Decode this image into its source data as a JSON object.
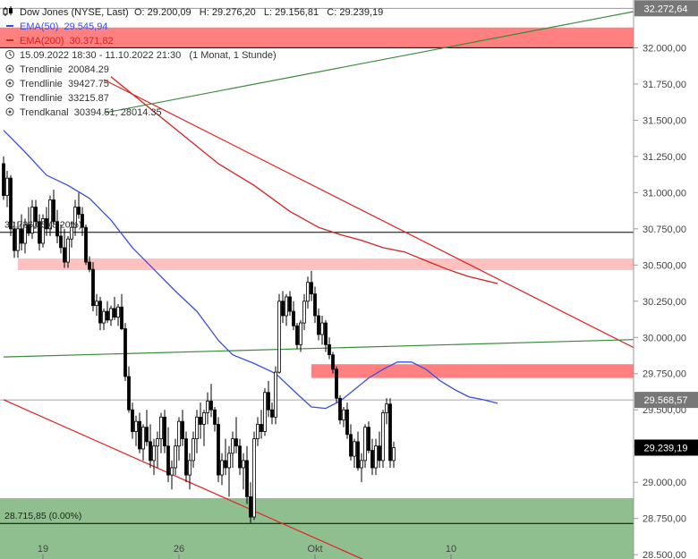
{
  "header": {
    "title": "Dow Jones (NYSE, Last)",
    "ohlc": "O: 29.200,09   H: 29.276,20   L: 29.156,81   C: 29.239,19",
    "ema50": "EMA(50)  29.545,94",
    "ema200": "EMA(200)  30.371,82",
    "range": "15.09.2022 18:30 - 11.10.2022 21:30   (1 Monat, 1 Stunde)",
    "trend1": "Trendlinie  20084.29",
    "trend2": "Trendlinie  39427.75",
    "trend3": "Trendlinie  33215.87",
    "channel": "Trendkanal  30394.51, 28014.35"
  },
  "colors": {
    "up": "#ffffff",
    "down": "#000000",
    "ema50": "#3a4fe0",
    "ema200": "#d32222",
    "resistance_strong": "#ff8080",
    "resistance_light": "#ffc0c0",
    "support": "#8fbf8f",
    "trend_green": "#3a8a3a",
    "trend_red": "#e02020",
    "current_tag": "#000000"
  },
  "chart_data": {
    "type": "candlestick",
    "y_ticks": [
      "32.000,00",
      "31.750,00",
      "31.500,00",
      "31.250,00",
      "31.000,00",
      "30.750,00",
      "30.500,00",
      "30.250,00",
      "30.000,00",
      "29.750,00",
      "29.500,00",
      "29.250,00",
      "29.000,00",
      "28.750,00",
      "28.500,00"
    ],
    "y_tick_values": [
      32000,
      31750,
      31500,
      31250,
      31000,
      30750,
      30500,
      30250,
      30000,
      29750,
      29500,
      29250,
      29000,
      28750,
      28500
    ],
    "x_labels": [
      {
        "label": "19",
        "bar": 11
      },
      {
        "label": "26",
        "bar": 49
      },
      {
        "label": "Okt",
        "bar": 87
      },
      {
        "label": "10",
        "bar": 125
      }
    ],
    "ylim": [
      28470,
      32330
    ],
    "price_labels": {
      "top": "32.272,64",
      "ref": "29.568,57",
      "last": "29.239,19"
    },
    "hlines": [
      {
        "value": 32272.64,
        "color": "#888888",
        "width": 0.8
      },
      {
        "value": 32000,
        "color": "#000000",
        "width": 1
      },
      {
        "value": 30726,
        "color": "#000000",
        "width": 1
      },
      {
        "value": 29568.57,
        "color": "#888888",
        "width": 0.8
      },
      {
        "value": 28715.85,
        "color": "#000000",
        "width": 1
      }
    ],
    "zones": [
      {
        "from": 32000,
        "to": 32140,
        "color": "#ff8080",
        "start_bar": 0
      },
      {
        "from": 30465,
        "to": 30545,
        "color": "#ffc0c0",
        "start_bar": 4
      },
      {
        "from": 29720,
        "to": 29815,
        "color": "#ff8080",
        "start_bar": 86
      },
      {
        "from": 28470,
        "to": 28890,
        "color": "#8fbf8f",
        "start_bar": 0
      }
    ],
    "zone_labels": [
      {
        "text": "30.726,05 (8.20%)",
        "value": 30726
      },
      {
        "text": "28.715,85 (0.00%)",
        "value": 28715.85
      }
    ],
    "trendlines": [
      {
        "name": "Trendlinie 20084.29",
        "color": "#e02020",
        "p1": [
          28,
          31780
        ],
        "p2": [
          176,
          29930
        ]
      },
      {
        "name": "Trendlinie 39427.75",
        "color": "#3a8a3a",
        "p1": [
          0,
          29865
        ],
        "p2": [
          176,
          29985
        ]
      },
      {
        "name": "Trendlinie 33215.87",
        "color": "#3a8a3a",
        "p1": [
          28,
          31550
        ],
        "p2": [
          176,
          32250
        ]
      },
      {
        "name": "Trendkanal 30394.51, 28014.35",
        "color": "#e02020",
        "p1": [
          0,
          29570
        ],
        "p2": [
          102,
          28450
        ]
      }
    ],
    "ema50": [
      [
        0,
        31430
      ],
      [
        6,
        31280
      ],
      [
        12,
        31120
      ],
      [
        18,
        31050
      ],
      [
        24,
        30960
      ],
      [
        30,
        30810
      ],
      [
        36,
        30620
      ],
      [
        42,
        30470
      ],
      [
        48,
        30320
      ],
      [
        54,
        30180
      ],
      [
        60,
        29980
      ],
      [
        64,
        29880
      ],
      [
        70,
        29820
      ],
      [
        76,
        29750
      ],
      [
        82,
        29610
      ],
      [
        86,
        29520
      ],
      [
        90,
        29510
      ],
      [
        94,
        29560
      ],
      [
        98,
        29640
      ],
      [
        102,
        29720
      ],
      [
        106,
        29780
      ],
      [
        110,
        29830
      ],
      [
        114,
        29830
      ],
      [
        118,
        29780
      ],
      [
        122,
        29700
      ],
      [
        126,
        29640
      ],
      [
        130,
        29590
      ],
      [
        134,
        29570
      ],
      [
        138,
        29545
      ]
    ],
    "ema200": [
      [
        30,
        31800
      ],
      [
        40,
        31600
      ],
      [
        50,
        31400
      ],
      [
        60,
        31200
      ],
      [
        70,
        31050
      ],
      [
        80,
        30870
      ],
      [
        88,
        30760
      ],
      [
        94,
        30710
      ],
      [
        100,
        30670
      ],
      [
        106,
        30620
      ],
      [
        112,
        30590
      ],
      [
        118,
        30530
      ],
      [
        124,
        30470
      ],
      [
        130,
        30420
      ],
      [
        138,
        30372
      ]
    ],
    "candles": [
      [
        31200,
        31250,
        30950,
        30980
      ],
      [
        30980,
        31150,
        30900,
        31100
      ],
      [
        31100,
        31120,
        30700,
        30750
      ],
      [
        30750,
        30800,
        30550,
        30600
      ],
      [
        30600,
        30800,
        30550,
        30750
      ],
      [
        30750,
        30850,
        30600,
        30650
      ],
      [
        30650,
        30820,
        30580,
        30780
      ],
      [
        30780,
        30900,
        30700,
        30720
      ],
      [
        30720,
        30950,
        30680,
        30900
      ],
      [
        30900,
        30950,
        30750,
        30800
      ],
      [
        30800,
        30850,
        30600,
        30650
      ],
      [
        30650,
        30850,
        30620,
        30820
      ],
      [
        30820,
        30900,
        30700,
        30750
      ],
      [
        30750,
        30980,
        30700,
        30950
      ],
      [
        30950,
        31020,
        30780,
        30800
      ],
      [
        30800,
        30880,
        30650,
        30700
      ],
      [
        30700,
        30780,
        30580,
        30620
      ],
      [
        30620,
        30750,
        30480,
        30520
      ],
      [
        30520,
        30700,
        30480,
        30680
      ],
      [
        30680,
        30800,
        30620,
        30760
      ],
      [
        30760,
        30950,
        30700,
        30900
      ],
      [
        30900,
        31000,
        30820,
        30850
      ],
      [
        30850,
        30900,
        30700,
        30760
      ],
      [
        30760,
        30780,
        30500,
        30520
      ],
      [
        30520,
        30560,
        30450,
        30470
      ],
      [
        30470,
        30520,
        30180,
        30220
      ],
      [
        30220,
        30300,
        30150,
        30250
      ],
      [
        30250,
        30280,
        30050,
        30100
      ],
      [
        30100,
        30200,
        30050,
        30180
      ],
      [
        30180,
        30250,
        30100,
        30120
      ],
      [
        30120,
        30220,
        30080,
        30200
      ],
      [
        30200,
        30280,
        30120,
        30140
      ],
      [
        30140,
        30230,
        30080,
        30210
      ],
      [
        30210,
        30300,
        30050,
        30060
      ],
      [
        30060,
        30100,
        29700,
        29730
      ],
      [
        29730,
        29800,
        29480,
        29500
      ],
      [
        29500,
        29550,
        29300,
        29350
      ],
      [
        29350,
        29460,
        29250,
        29420
      ],
      [
        29420,
        29480,
        29200,
        29230
      ],
      [
        29230,
        29400,
        29150,
        29380
      ],
      [
        29380,
        29500,
        29250,
        29280
      ],
      [
        29280,
        29400,
        29100,
        29150
      ],
      [
        29150,
        29300,
        29050,
        29250
      ],
      [
        29250,
        29350,
        29100,
        29300
      ],
      [
        29300,
        29480,
        29200,
        29450
      ],
      [
        29450,
        29500,
        29200,
        29250
      ],
      [
        29250,
        29380,
        29000,
        29050
      ],
      [
        29050,
        29150,
        28950,
        29100
      ],
      [
        29100,
        29300,
        29050,
        29250
      ],
      [
        29250,
        29450,
        29150,
        29420
      ],
      [
        29420,
        29500,
        29250,
        29300
      ],
      [
        29300,
        29350,
        29000,
        29050
      ],
      [
        29050,
        29200,
        28950,
        29150
      ],
      [
        29150,
        29350,
        29100,
        29300
      ],
      [
        29300,
        29500,
        29200,
        29450
      ],
      [
        29450,
        29550,
        29300,
        29400
      ],
      [
        29400,
        29500,
        29250,
        29480
      ],
      [
        29480,
        29620,
        29400,
        29560
      ],
      [
        29560,
        29680,
        29450,
        29500
      ],
      [
        29500,
        29520,
        29350,
        29400
      ],
      [
        29400,
        29450,
        29000,
        29050
      ],
      [
        29050,
        29200,
        28980,
        29150
      ],
      [
        29150,
        29300,
        29050,
        29100
      ],
      [
        29100,
        29250,
        28900,
        29200
      ],
      [
        29200,
        29350,
        29100,
        29300
      ],
      [
        29300,
        29450,
        29200,
        29250
      ],
      [
        29250,
        29300,
        29050,
        29100
      ],
      [
        29100,
        29200,
        28950,
        29150
      ],
      [
        29150,
        29250,
        28850,
        28900
      ],
      [
        28900,
        29000,
        28720,
        28760
      ],
      [
        28760,
        29350,
        28740,
        29300
      ],
      [
        29300,
        29450,
        29250,
        29400
      ],
      [
        29400,
        29500,
        29300,
        29350
      ],
      [
        29350,
        29650,
        29320,
        29620
      ],
      [
        29620,
        29700,
        29450,
        29500
      ],
      [
        29500,
        29550,
        29400,
        29450
      ],
      [
        29450,
        29800,
        29400,
        29760
      ],
      [
        29760,
        30300,
        29750,
        30250
      ],
      [
        30250,
        30320,
        30100,
        30150
      ],
      [
        30150,
        30300,
        30080,
        30280
      ],
      [
        30280,
        30320,
        30150,
        30180
      ],
      [
        30180,
        30250,
        30050,
        30080
      ],
      [
        30080,
        30100,
        29920,
        29950
      ],
      [
        29950,
        30120,
        29900,
        30100
      ],
      [
        30100,
        30300,
        30050,
        30250
      ],
      [
        30250,
        30420,
        30200,
        30380
      ],
      [
        30380,
        30460,
        30250,
        30300
      ],
      [
        30300,
        30350,
        30100,
        30150
      ],
      [
        30150,
        30200,
        29980,
        30020
      ],
      [
        30020,
        30150,
        29950,
        30100
      ],
      [
        30100,
        30120,
        29900,
        29950
      ],
      [
        29950,
        30000,
        29850,
        29880
      ],
      [
        29880,
        29900,
        29750,
        29780
      ],
      [
        29780,
        29800,
        29550,
        29580
      ],
      [
        29580,
        29600,
        29400,
        29430
      ],
      [
        29430,
        29520,
        29380,
        29500
      ],
      [
        29500,
        29550,
        29300,
        29330
      ],
      [
        29330,
        29400,
        29150,
        29180
      ],
      [
        29180,
        29300,
        29100,
        29280
      ],
      [
        29280,
        29350,
        29080,
        29100
      ],
      [
        29100,
        29200,
        29000,
        29150
      ],
      [
        29150,
        29400,
        29100,
        29380
      ],
      [
        29380,
        29420,
        29200,
        29220
      ],
      [
        29220,
        29300,
        29050,
        29100
      ],
      [
        29100,
        29300,
        29050,
        29250
      ],
      [
        29250,
        29350,
        29100,
        29150
      ],
      [
        29150,
        29500,
        29100,
        29480
      ],
      [
        29480,
        29580,
        29400,
        29540
      ],
      [
        29540,
        29580,
        29100,
        29150
      ],
      [
        29150,
        29280,
        29100,
        29239
      ]
    ]
  }
}
